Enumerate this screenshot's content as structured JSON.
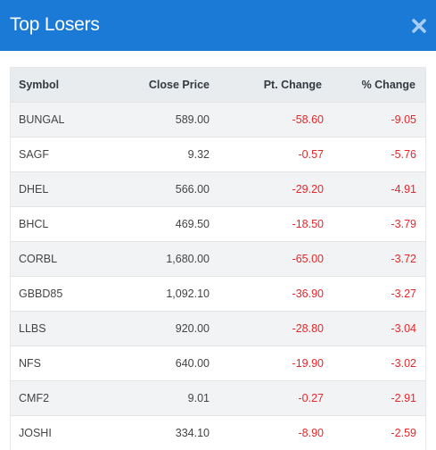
{
  "modal": {
    "title": "Top Losers",
    "close_icon": "close-icon",
    "header_color": "#1a7ad6"
  },
  "table": {
    "columns": [
      "Symbol",
      "Close Price",
      "Pt. Change",
      "% Change"
    ],
    "rows": [
      {
        "symbol": "BUNGAL",
        "close": "589.00",
        "pt": "-58.60",
        "pct": "-9.05"
      },
      {
        "symbol": "SAGF",
        "close": "9.32",
        "pt": "-0.57",
        "pct": "-5.76"
      },
      {
        "symbol": "DHEL",
        "close": "566.00",
        "pt": "-29.20",
        "pct": "-4.91"
      },
      {
        "symbol": "BHCL",
        "close": "469.50",
        "pt": "-18.50",
        "pct": "-3.79"
      },
      {
        "symbol": "CORBL",
        "close": "1,680.00",
        "pt": "-65.00",
        "pct": "-3.72"
      },
      {
        "symbol": "GBBD85",
        "close": "1,092.10",
        "pt": "-36.90",
        "pct": "-3.27"
      },
      {
        "symbol": "LLBS",
        "close": "920.00",
        "pt": "-28.80",
        "pct": "-3.04"
      },
      {
        "symbol": "NFS",
        "close": "640.00",
        "pt": "-19.90",
        "pct": "-3.02"
      },
      {
        "symbol": "CMF2",
        "close": "9.01",
        "pt": "-0.27",
        "pct": "-2.91"
      },
      {
        "symbol": "JOSHI",
        "close": "334.10",
        "pt": "-8.90",
        "pct": "-2.59"
      }
    ],
    "negative_color": "#e8262a"
  }
}
